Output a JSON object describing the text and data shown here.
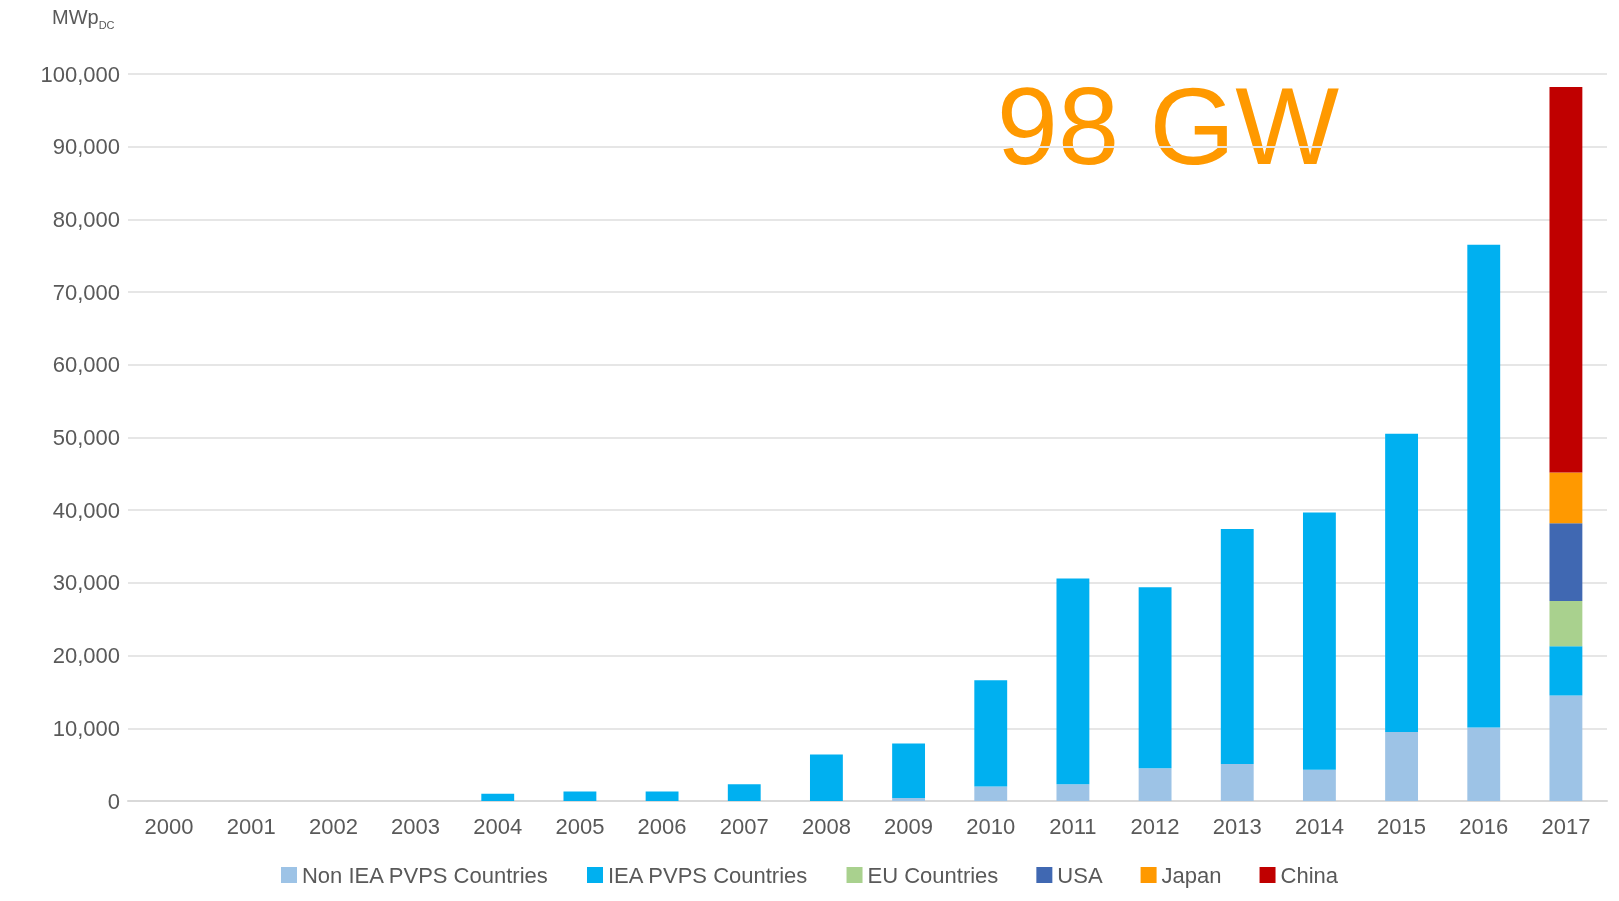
{
  "chart_data": {
    "type": "bar",
    "stacked": true,
    "ylabel": "MWp$_{DC}$",
    "annotations": [
      "98 GW"
    ],
    "categories": [
      "2000",
      "2001",
      "2002",
      "2003",
      "2004",
      "2005",
      "2006",
      "2007",
      "2008",
      "2009",
      "2010",
      "2011",
      "2012",
      "2013",
      "2014",
      "2015",
      "2016",
      "2017"
    ],
    "series": [
      {
        "name": "Non IEA PVPS Countries",
        "color": "#9dc3e6",
        "values": [
          0,
          0,
          0,
          0,
          0,
          0,
          0,
          0,
          0,
          400,
          2000,
          2300,
          4500,
          5100,
          4300,
          9500,
          10100,
          14500
        ]
      },
      {
        "name": "IEA PVPS Countries",
        "color": "#00b0f0",
        "values": [
          0,
          0,
          0,
          0,
          1000,
          1300,
          1300,
          2300,
          6400,
          7500,
          14600,
          28300,
          24900,
          32300,
          35400,
          41000,
          66400,
          6800
        ]
      },
      {
        "name": "EU Countries",
        "color": "#a9d18e",
        "values": [
          null,
          null,
          null,
          null,
          null,
          null,
          null,
          null,
          null,
          null,
          null,
          null,
          null,
          null,
          null,
          null,
          null,
          6200
        ]
      },
      {
        "name": "USA",
        "color": "#4068b2",
        "values": [
          null,
          null,
          null,
          null,
          null,
          null,
          null,
          null,
          null,
          null,
          null,
          null,
          null,
          null,
          null,
          null,
          null,
          10700
        ]
      },
      {
        "name": "Japan",
        "color": "#ff9900",
        "values": [
          null,
          null,
          null,
          null,
          null,
          null,
          null,
          null,
          null,
          null,
          null,
          null,
          null,
          null,
          null,
          null,
          null,
          7000
        ]
      },
      {
        "name": "China",
        "color": "#c00000",
        "values": [
          null,
          null,
          null,
          null,
          null,
          null,
          null,
          null,
          null,
          null,
          null,
          null,
          null,
          null,
          null,
          null,
          null,
          53000
        ]
      }
    ],
    "ylim": [
      0,
      100000
    ],
    "yticks": [
      0,
      {
        "value": 10000,
        "label": "10,000"
      },
      {
        "value": 20000,
        "label": "20,000"
      },
      {
        "value": 30000,
        "label": "30,000"
      },
      {
        "value": 40000,
        "label": "40,000"
      },
      {
        "value": 50000,
        "label": "50,000"
      },
      {
        "value": 60000,
        "label": "60,000"
      },
      {
        "value": 70000,
        "label": "70,000"
      },
      {
        "value": 80000,
        "label": "80,000"
      },
      {
        "value": 90000,
        "label": "90,000"
      },
      {
        "value": 100000,
        "label": "100,000"
      }
    ],
    "grid": "y",
    "legend": "bottom"
  }
}
